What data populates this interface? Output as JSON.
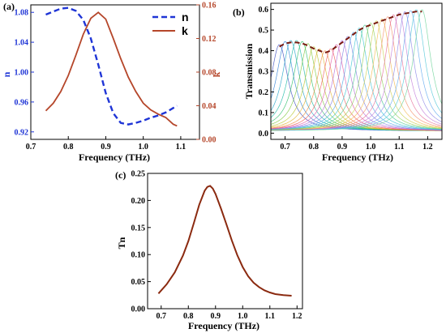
{
  "colors": {
    "n": "#1f35d6",
    "k": "#b5462a",
    "envelope": "#7a1a10",
    "tn": "#8b2a10",
    "axis": "#000000"
  },
  "chart_data": [
    {
      "panel_label": "(a)",
      "type": "line",
      "xlabel": "Frequency (THz)",
      "ylabel_left": "n",
      "ylabel_right": "k",
      "xlim": [
        0.7,
        1.15
      ],
      "xticks": [
        "0.7",
        "0.8",
        "0.9",
        "1.0",
        "1.1"
      ],
      "ylim_left": [
        0.91,
        1.09
      ],
      "yticks_left": [
        "0.92",
        "0.96",
        "1.00",
        "1.04",
        "1.08"
      ],
      "ylim_right": [
        0.0,
        0.16
      ],
      "yticks_right": [
        "0.00",
        "0.04",
        "0.08",
        "0.12",
        "0.16"
      ],
      "legend_position": "top-right",
      "series": [
        {
          "name": "n",
          "axis": "left",
          "style": "dashed",
          "x": [
            0.74,
            0.76,
            0.78,
            0.8,
            0.82,
            0.84,
            0.86,
            0.88,
            0.9,
            0.92,
            0.94,
            0.96,
            0.98,
            1.0,
            1.02,
            1.04,
            1.06,
            1.08,
            1.09
          ],
          "y": [
            1.077,
            1.081,
            1.085,
            1.086,
            1.082,
            1.07,
            1.045,
            1.01,
            0.972,
            0.945,
            0.932,
            0.93,
            0.932,
            0.935,
            0.939,
            0.942,
            0.946,
            0.952,
            0.955
          ]
        },
        {
          "name": "k",
          "axis": "right",
          "style": "solid",
          "x": [
            0.74,
            0.76,
            0.78,
            0.8,
            0.82,
            0.84,
            0.86,
            0.88,
            0.9,
            0.92,
            0.94,
            0.96,
            0.98,
            1.0,
            1.02,
            1.04,
            1.06,
            1.08,
            1.09
          ],
          "y": [
            0.034,
            0.043,
            0.057,
            0.076,
            0.1,
            0.125,
            0.144,
            0.151,
            0.143,
            0.12,
            0.096,
            0.074,
            0.057,
            0.043,
            0.035,
            0.03,
            0.026,
            0.018,
            0.016
          ]
        }
      ]
    },
    {
      "panel_label": "(b)",
      "type": "line",
      "xlabel": "Frequency (THz)",
      "ylabel": "Transmission",
      "xlim": [
        0.65,
        1.25
      ],
      "xticks": [
        "0.7",
        "0.8",
        "0.9",
        "1.0",
        "1.1",
        "1.2"
      ],
      "ylim": [
        -0.03,
        0.63
      ],
      "yticks": [
        "0.0",
        "0.1",
        "0.2",
        "0.3",
        "0.4",
        "0.5",
        "0.6"
      ],
      "resonances": {
        "centers": [
          0.68,
          0.7,
          0.72,
          0.74,
          0.76,
          0.78,
          0.8,
          0.82,
          0.84,
          0.86,
          0.88,
          0.9,
          0.92,
          0.94,
          0.96,
          0.98,
          1.0,
          1.02,
          1.04,
          1.06,
          1.08,
          1.1,
          1.12,
          1.14,
          1.16,
          1.18
        ],
        "peaks": [
          0.42,
          0.435,
          0.44,
          0.44,
          0.435,
          0.425,
          0.41,
          0.4,
          0.39,
          0.4,
          0.42,
          0.44,
          0.46,
          0.48,
          0.5,
          0.515,
          0.525,
          0.535,
          0.545,
          0.555,
          0.565,
          0.575,
          0.58,
          0.585,
          0.59,
          0.59
        ],
        "width": 0.075
      },
      "envelope": {
        "style": "dashed",
        "x": [
          0.68,
          0.7,
          0.72,
          0.74,
          0.76,
          0.78,
          0.8,
          0.82,
          0.84,
          0.86,
          0.88,
          0.9,
          0.92,
          0.94,
          0.96,
          0.98,
          1.0,
          1.02,
          1.04,
          1.06,
          1.08,
          1.1,
          1.12,
          1.14,
          1.16,
          1.18
        ],
        "y": [
          0.42,
          0.435,
          0.44,
          0.44,
          0.435,
          0.425,
          0.41,
          0.4,
          0.39,
          0.4,
          0.42,
          0.44,
          0.46,
          0.48,
          0.5,
          0.515,
          0.525,
          0.535,
          0.545,
          0.555,
          0.565,
          0.575,
          0.58,
          0.585,
          0.59,
          0.59
        ]
      }
    },
    {
      "panel_label": "(c)",
      "type": "line",
      "xlabel": "Frequency (THz)",
      "ylabel": "Tn",
      "xlim": [
        0.65,
        1.22
      ],
      "xticks": [
        "0.7",
        "0.8",
        "0.9",
        "1.0",
        "1.1",
        "1.2"
      ],
      "ylim": [
        0.0,
        0.25
      ],
      "yticks": [
        "0.00",
        "0.05",
        "0.10",
        "0.15",
        "0.20",
        "0.25"
      ],
      "series": [
        {
          "name": "",
          "x": [
            0.69,
            0.72,
            0.75,
            0.78,
            0.8,
            0.82,
            0.84,
            0.86,
            0.87,
            0.88,
            0.89,
            0.9,
            0.92,
            0.94,
            0.96,
            0.98,
            1.0,
            1.02,
            1.04,
            1.06,
            1.08,
            1.1,
            1.12,
            1.15,
            1.18
          ],
          "y": [
            0.028,
            0.045,
            0.067,
            0.098,
            0.125,
            0.158,
            0.192,
            0.218,
            0.225,
            0.227,
            0.222,
            0.212,
            0.185,
            0.156,
            0.126,
            0.099,
            0.077,
            0.06,
            0.048,
            0.04,
            0.034,
            0.03,
            0.027,
            0.025,
            0.024
          ]
        }
      ]
    }
  ]
}
